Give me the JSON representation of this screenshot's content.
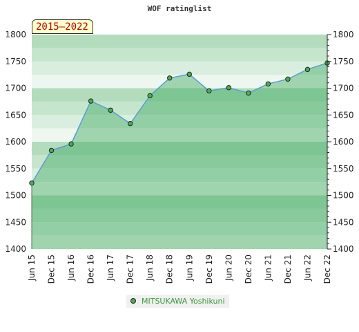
{
  "title": "WOF ratinglist",
  "period_badge": "2015–2022",
  "legend": [
    {
      "name": "MITSUKAWA Yoshikuni",
      "color": "#4caf50"
    }
  ],
  "colors": {
    "line": "#5b9bd5",
    "marker": "#4caf50",
    "marker_edge": "#222222",
    "legend_text": "#3a9a3a"
  },
  "chart_data": {
    "type": "area",
    "title": "WOF ratinglist",
    "ylim": [
      1400,
      1800
    ],
    "y_ticks": [
      1400,
      1450,
      1500,
      1550,
      1600,
      1650,
      1700,
      1750,
      1800
    ],
    "categories": [
      "Jun 15",
      "Dec 15",
      "Jun 16",
      "Dec 16",
      "Jun 17",
      "Dec 17",
      "Jun 18",
      "Dec 18",
      "Jun 19",
      "Dec 19",
      "Jun 20",
      "Dec 20",
      "Jun 21",
      "Dec 21",
      "Jun 22",
      "Dec 22"
    ],
    "series": [
      {
        "name": "MITSUKAWA Yoshikuni",
        "values": [
          1523,
          1584,
          1596,
          1676,
          1659,
          1634,
          1686,
          1719,
          1726,
          1695,
          1701,
          1691,
          1708,
          1717,
          1735,
          1747
        ]
      }
    ],
    "grid": true,
    "legend_position": "bottom"
  }
}
